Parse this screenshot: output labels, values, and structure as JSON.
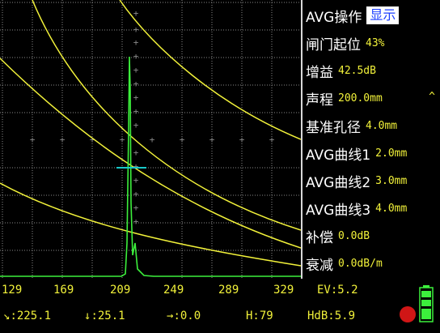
{
  "panel": {
    "items": [
      {
        "label": "AVG操作",
        "value": "显示",
        "selected": true
      },
      {
        "label": "闸门起位",
        "value": "43%"
      },
      {
        "label": "增益",
        "value": "42.5dB"
      },
      {
        "label": "声程",
        "value": "200.0mm"
      },
      {
        "label": "基准孔径",
        "value": "4.0mm"
      },
      {
        "label": "AVG曲线1",
        "value": "2.0mm"
      },
      {
        "label": "AVG曲线2",
        "value": "3.0mm"
      },
      {
        "label": "AVG曲线3",
        "value": "4.0mm"
      },
      {
        "label": "补偿",
        "value": "0.0dB"
      },
      {
        "label": "衰减",
        "value": "0.0dB/m"
      }
    ],
    "scroll_arrow": "^"
  },
  "scale": {
    "ticks": [
      "129",
      "169",
      "209",
      "249",
      "289",
      "329"
    ],
    "ev": "EV:5.2"
  },
  "status": {
    "sound_path": ":225.1",
    "depth": ":25.1",
    "horizontal": ":0.0",
    "height": "H:79",
    "hdb": "HdB:5.9"
  },
  "colors": {
    "grid": "#8a8a8a",
    "curve": "#f2f23a",
    "echo": "#3cf03c",
    "gate": "#19c8c8",
    "text": "#f2f23a"
  }
}
